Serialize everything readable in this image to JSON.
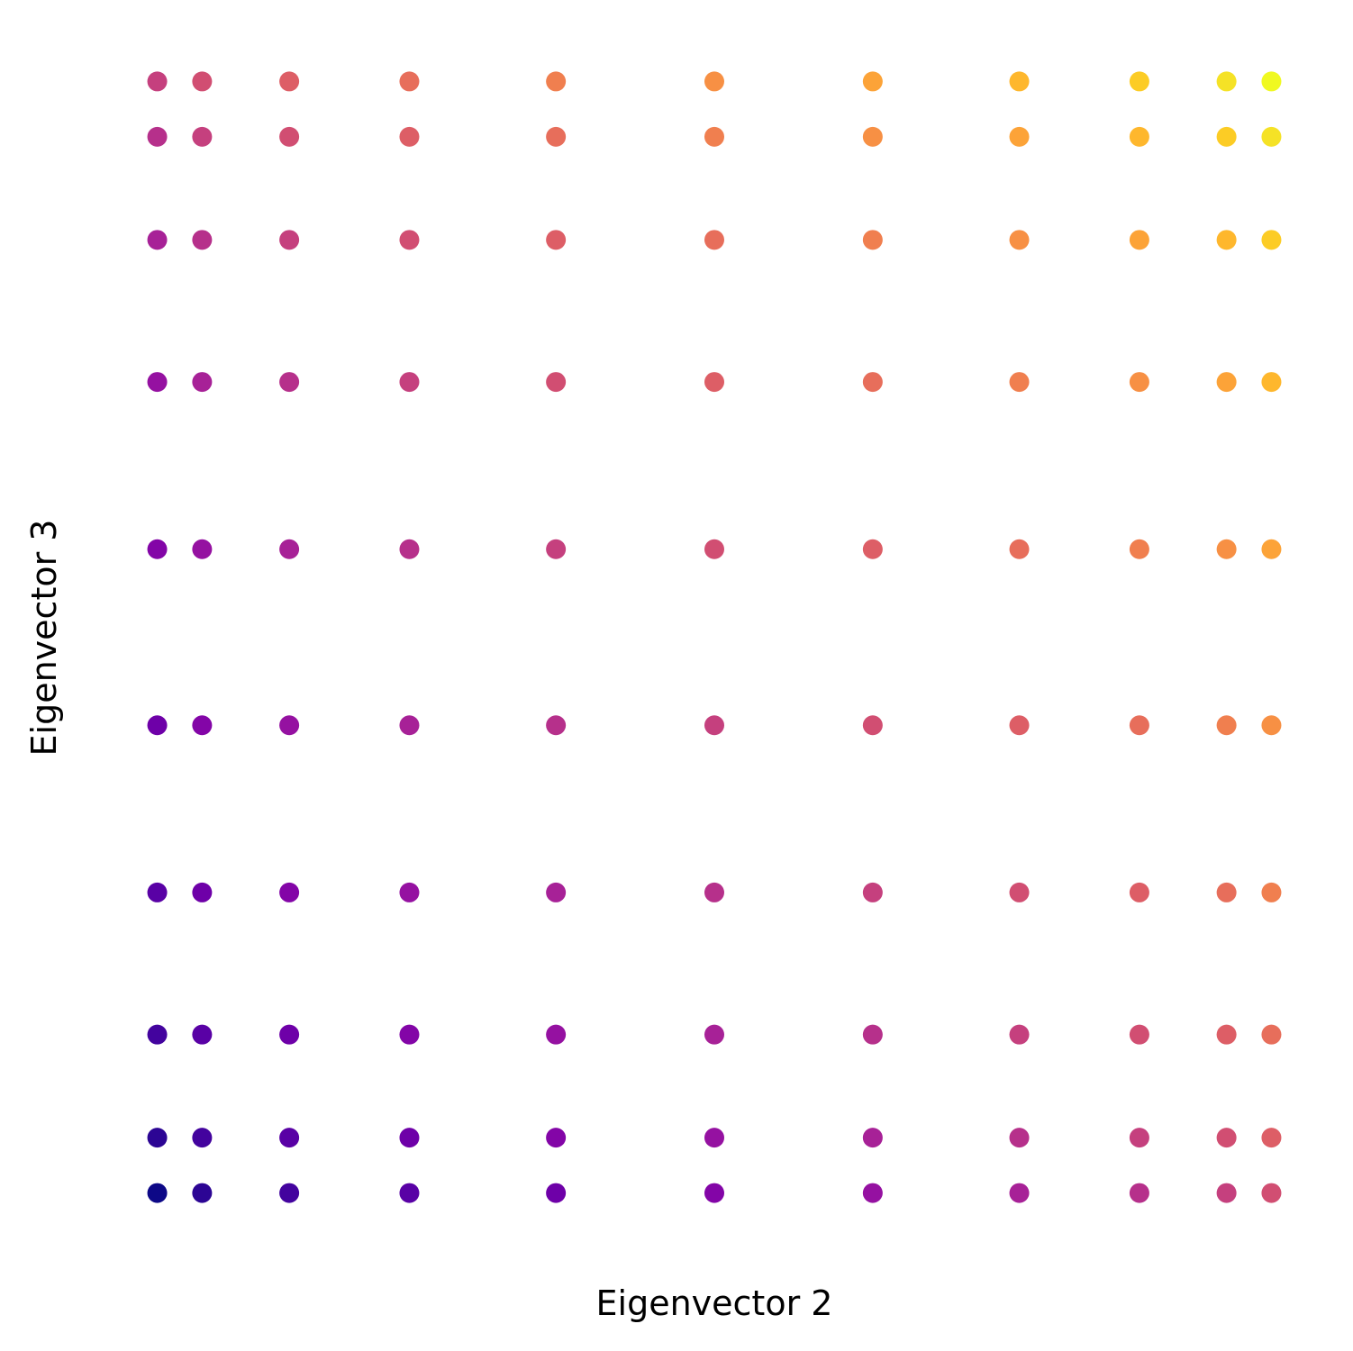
{
  "chart_data": {
    "type": "scatter",
    "xlabel": "Eigenvector 2",
    "ylabel": "Eigenvector 3",
    "xlim": [
      -0.464,
      0.464
    ],
    "ylim": [
      -0.486,
      0.486
    ],
    "x": [
      -0.422,
      -0.422,
      -0.422,
      -0.422,
      -0.422,
      -0.422,
      -0.422,
      -0.422,
      -0.422,
      -0.422,
      -0.388,
      -0.388,
      -0.388,
      -0.388,
      -0.388,
      -0.388,
      -0.388,
      -0.388,
      -0.388,
      -0.388,
      -0.322,
      -0.322,
      -0.322,
      -0.322,
      -0.322,
      -0.322,
      -0.322,
      -0.322,
      -0.322,
      -0.322,
      -0.231,
      -0.231,
      -0.231,
      -0.231,
      -0.231,
      -0.231,
      -0.231,
      -0.231,
      -0.231,
      -0.231,
      -0.12,
      -0.12,
      -0.12,
      -0.12,
      -0.12,
      -0.12,
      -0.12,
      -0.12,
      -0.12,
      -0.12,
      0,
      0,
      0,
      0,
      0,
      0,
      0,
      0,
      0,
      0,
      0.12,
      0.12,
      0.12,
      0.12,
      0.12,
      0.12,
      0.12,
      0.12,
      0.12,
      0.12,
      0.231,
      0.231,
      0.231,
      0.231,
      0.231,
      0.231,
      0.231,
      0.231,
      0.231,
      0.231,
      0.322,
      0.322,
      0.322,
      0.322,
      0.322,
      0.322,
      0.322,
      0.322,
      0.322,
      0.322,
      0.388,
      0.388,
      0.388,
      0.388,
      0.388,
      0.388,
      0.388,
      0.388,
      0.388,
      0.388,
      0.422,
      0.422,
      0.422,
      0.422,
      0.422,
      0.422,
      0.422,
      0.422,
      0.422,
      0.422
    ],
    "values": [
      -0.442,
      -0.398,
      -0.316,
      -0.203,
      -0.07,
      0.07,
      0.203,
      0.316,
      0.398,
      0.442,
      -0.442,
      -0.398,
      -0.316,
      -0.203,
      -0.07,
      0.07,
      0.203,
      0.316,
      0.398,
      0.442,
      -0.442,
      -0.398,
      -0.316,
      -0.203,
      -0.07,
      0.07,
      0.203,
      0.316,
      0.398,
      0.442,
      -0.442,
      -0.398,
      -0.316,
      -0.203,
      -0.07,
      0.07,
      0.203,
      0.316,
      0.398,
      0.442,
      -0.442,
      -0.398,
      -0.316,
      -0.203,
      -0.07,
      0.07,
      0.203,
      0.316,
      0.398,
      0.442,
      -0.442,
      -0.398,
      -0.316,
      -0.203,
      -0.07,
      0.07,
      0.203,
      0.316,
      0.398,
      0.442,
      -0.442,
      -0.398,
      -0.316,
      -0.203,
      -0.07,
      0.07,
      0.203,
      0.316,
      0.398,
      0.442,
      -0.442,
      -0.398,
      -0.316,
      -0.203,
      -0.07,
      0.07,
      0.203,
      0.316,
      0.398,
      0.442,
      -0.442,
      -0.398,
      -0.316,
      -0.203,
      -0.07,
      0.07,
      0.203,
      0.316,
      0.398,
      0.442,
      -0.442,
      -0.398,
      -0.316,
      -0.203,
      -0.07,
      0.07,
      0.203,
      0.316,
      0.398,
      0.442,
      -0.442,
      -0.398,
      -0.316,
      -0.203,
      -0.07,
      0.07,
      0.203,
      0.316,
      0.398,
      0.442
    ],
    "colors": [
      "#0d0887",
      "#2c0594",
      "#43039e",
      "#5901a5",
      "#6e00a8",
      "#8305a7",
      "#9511a1",
      "#a72197",
      "#b6308b",
      "#c5407e",
      "#2c0594",
      "#43039e",
      "#5901a5",
      "#6e00a8",
      "#8305a7",
      "#9511a1",
      "#a72197",
      "#b6308b",
      "#c5407e",
      "#d14e72",
      "#43039e",
      "#5901a5",
      "#6e00a8",
      "#8305a7",
      "#9511a1",
      "#a72197",
      "#b6308b",
      "#c5407e",
      "#d14e72",
      "#dd5e66",
      "#5901a5",
      "#6e00a8",
      "#8305a7",
      "#9511a1",
      "#a72197",
      "#b6308b",
      "#c5407e",
      "#d14e72",
      "#dd5e66",
      "#e76e5b",
      "#6e00a8",
      "#8305a7",
      "#9511a1",
      "#a72197",
      "#b6308b",
      "#c5407e",
      "#d14e72",
      "#dd5e66",
      "#e76e5b",
      "#f07f4f",
      "#8305a7",
      "#9511a1",
      "#a72197",
      "#b6308b",
      "#c5407e",
      "#d14e72",
      "#dd5e66",
      "#e76e5b",
      "#f07f4f",
      "#f79044",
      "#9511a1",
      "#a72197",
      "#b6308b",
      "#c5407e",
      "#d14e72",
      "#dd5e66",
      "#e76e5b",
      "#f07f4f",
      "#f79044",
      "#fca338",
      "#a72197",
      "#b6308b",
      "#c5407e",
      "#d14e72",
      "#dd5e66",
      "#e76e5b",
      "#f07f4f",
      "#f79044",
      "#fca338",
      "#feb72d",
      "#b6308b",
      "#c5407e",
      "#d14e72",
      "#dd5e66",
      "#e76e5b",
      "#f07f4f",
      "#f79044",
      "#fca338",
      "#feb72d",
      "#fccc25",
      "#c5407e",
      "#d14e72",
      "#dd5e66",
      "#e76e5b",
      "#f07f4f",
      "#f79044",
      "#fca338",
      "#feb72d",
      "#fccc25",
      "#f5e226",
      "#d14e72",
      "#dd5e66",
      "#e76e5b",
      "#f07f4f",
      "#f79044",
      "#fca338",
      "#feb72d",
      "#fccc25",
      "#f5e226",
      "#f0f921"
    ]
  }
}
